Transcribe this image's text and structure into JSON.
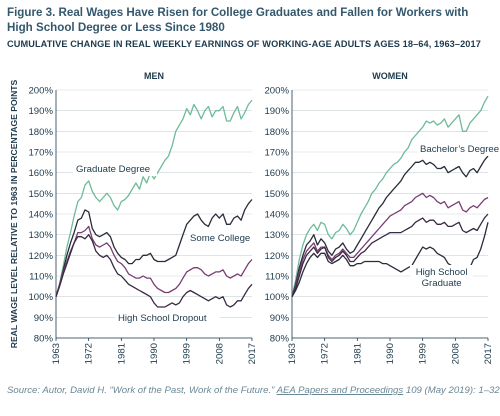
{
  "figure": {
    "title": "Figure 3. Real Wages Have Risen for College Graduates and Fallen for Workers with High School Degree or Less Since 1980",
    "subtitle": "CUMULATIVE CHANGE IN REAL WEEKLY EARNINGS OF WORKING-AGE ADULTS AGES 18–64, 1963–2017",
    "source_prefix": "Source: Autor, David H. “Work of the Past, Work of the Future.” ",
    "source_pub": "AEA Papers and Proceedings",
    "source_suffix": " 109 (May 2019): 1–32."
  },
  "colors": {
    "graduate": "#6dbb98",
    "college": "#2a2c39",
    "hs_grad": "#7a3d72",
    "dropout": "#3a2a44",
    "text": "#1d3a4c",
    "gridline": "#c9d3d8"
  },
  "chart_data": [
    {
      "type": "line",
      "title": "MEN",
      "ylabel": "REAL WAGE LEVEL RELATIVE TO 1963 IN PERCENTAGE POINTS",
      "xlabel": "",
      "xlim": [
        1963,
        2017
      ],
      "ylim": [
        80,
        200
      ],
      "x_ticks": [
        "1963",
        "1972",
        "1981",
        "1990",
        "1999",
        "2008",
        "2017"
      ],
      "y_ticks": [
        "80%",
        "90%",
        "100%",
        "110%",
        "120%",
        "130%",
        "140%",
        "150%",
        "160%",
        "170%",
        "180%",
        "190%",
        "200%"
      ],
      "x": [
        1963,
        1964,
        1965,
        1966,
        1967,
        1968,
        1969,
        1970,
        1971,
        1972,
        1973,
        1974,
        1975,
        1976,
        1977,
        1978,
        1979,
        1980,
        1981,
        1982,
        1983,
        1984,
        1985,
        1986,
        1987,
        1988,
        1989,
        1990,
        1991,
        1992,
        1993,
        1994,
        1995,
        1996,
        1997,
        1998,
        1999,
        2000,
        2001,
        2002,
        2003,
        2004,
        2005,
        2006,
        2007,
        2008,
        2009,
        2010,
        2011,
        2012,
        2013,
        2014,
        2015,
        2016,
        2017
      ],
      "series": [
        {
          "name": "Graduate Degree",
          "label": "Graduate Degree",
          "color_key": "graduate",
          "values": [
            100,
            106,
            115,
            124,
            131,
            139,
            146,
            148,
            154,
            156,
            151,
            148,
            146,
            148,
            150,
            148,
            144,
            142,
            146,
            147,
            149,
            152,
            155,
            152,
            158,
            155,
            160,
            157,
            160,
            163,
            166,
            168,
            173,
            180,
            183,
            186,
            191,
            188,
            193,
            190,
            186,
            190,
            192,
            187,
            190,
            190,
            192,
            185,
            185,
            189,
            192,
            186,
            189,
            193,
            195
          ]
        },
        {
          "name": "Some College",
          "label": "Some College",
          "color_key": "college",
          "values": [
            100,
            106,
            113,
            120,
            126,
            131,
            137,
            138,
            142,
            141,
            133,
            130,
            129,
            130,
            131,
            129,
            124,
            121,
            119,
            118,
            116,
            116,
            118,
            118,
            120,
            120,
            121,
            118,
            117,
            117,
            117,
            118,
            119,
            120,
            125,
            130,
            135,
            137,
            139,
            140,
            137,
            135,
            134,
            138,
            140,
            138,
            140,
            135,
            135,
            138,
            139,
            137,
            142,
            145,
            147
          ]
        },
        {
          "name": "High School Graduate",
          "label": "",
          "color_key": "hs_grad",
          "values": [
            100,
            106,
            112,
            117,
            122,
            126,
            131,
            131,
            132,
            134,
            128,
            125,
            124,
            125,
            126,
            124,
            120,
            117,
            116,
            114,
            111,
            110,
            109,
            109,
            110,
            109,
            109,
            106,
            104,
            103,
            102,
            102,
            103,
            104,
            106,
            109,
            112,
            113,
            114,
            114,
            113,
            111,
            110,
            111,
            112,
            112,
            113,
            110,
            109,
            110,
            111,
            110,
            113,
            116,
            118
          ]
        },
        {
          "name": "High School Dropout",
          "label": "High School Dropout",
          "color_key": "dropout",
          "values": [
            100,
            105,
            111,
            116,
            121,
            126,
            129,
            129,
            128,
            130,
            127,
            122,
            120,
            119,
            120,
            118,
            114,
            111,
            110,
            108,
            106,
            105,
            104,
            103,
            102,
            101,
            100,
            97,
            95,
            95,
            95,
            96,
            97,
            96,
            97,
            100,
            102,
            103,
            102,
            101,
            100,
            99,
            98,
            99,
            100,
            99,
            100,
            96,
            95,
            96,
            98,
            98,
            101,
            104,
            106
          ]
        }
      ]
    },
    {
      "type": "line",
      "title": "WOMEN",
      "ylabel": "",
      "xlabel": "",
      "xlim": [
        1963,
        2017
      ],
      "ylim": [
        80,
        200
      ],
      "x_ticks": [
        "1963",
        "1972",
        "1981",
        "1990",
        "1999",
        "2008",
        "2017"
      ],
      "y_ticks": [
        "80%",
        "90%",
        "100%",
        "110%",
        "120%",
        "130%",
        "140%",
        "150%",
        "160%",
        "170%",
        "180%",
        "190%",
        "200%"
      ],
      "x": [
        1963,
        1964,
        1965,
        1966,
        1967,
        1968,
        1969,
        1970,
        1971,
        1972,
        1973,
        1974,
        1975,
        1976,
        1977,
        1978,
        1979,
        1980,
        1981,
        1982,
        1983,
        1984,
        1985,
        1986,
        1987,
        1988,
        1989,
        1990,
        1991,
        1992,
        1993,
        1994,
        1995,
        1996,
        1997,
        1998,
        1999,
        2000,
        2001,
        2002,
        2003,
        2004,
        2005,
        2006,
        2007,
        2008,
        2009,
        2010,
        2011,
        2012,
        2013,
        2014,
        2015,
        2016,
        2017
      ],
      "series": [
        {
          "name": "Graduate Degree",
          "label": "",
          "color_key": "graduate",
          "values": [
            100,
            108,
            118,
            125,
            130,
            133,
            135,
            132,
            136,
            135,
            130,
            128,
            131,
            132,
            135,
            133,
            130,
            132,
            136,
            140,
            143,
            146,
            150,
            152,
            155,
            157,
            160,
            162,
            164,
            165,
            167,
            170,
            172,
            176,
            178,
            180,
            182,
            185,
            184,
            185,
            183,
            184,
            186,
            182,
            184,
            186,
            188,
            180,
            180,
            184,
            186,
            188,
            190,
            194,
            197
          ]
        },
        {
          "name": "Bachelor's Degree",
          "label": "Bachelor’s Degree",
          "color_key": "college",
          "values": [
            100,
            106,
            114,
            120,
            125,
            127,
            130,
            125,
            128,
            126,
            122,
            120,
            123,
            124,
            126,
            123,
            121,
            122,
            125,
            128,
            131,
            134,
            137,
            140,
            143,
            145,
            148,
            150,
            152,
            154,
            156,
            159,
            161,
            163,
            165,
            165,
            166,
            164,
            165,
            164,
            162,
            162,
            163,
            160,
            161,
            162,
            163,
            160,
            158,
            161,
            162,
            160,
            163,
            166,
            168
          ]
        },
        {
          "name": "Some College",
          "label": "",
          "color_key": "hs_grad",
          "values": [
            100,
            105,
            112,
            118,
            122,
            124,
            126,
            122,
            124,
            124,
            120,
            118,
            120,
            121,
            123,
            121,
            119,
            119,
            121,
            123,
            125,
            127,
            129,
            131,
            133,
            135,
            137,
            139,
            140,
            141,
            142,
            144,
            145,
            146,
            148,
            149,
            150,
            148,
            149,
            148,
            146,
            145,
            146,
            143,
            144,
            145,
            146,
            142,
            141,
            143,
            144,
            143,
            145,
            147,
            148
          ]
        },
        {
          "name": "High School Graduate",
          "label": "High School\nGraduate",
          "color_key": "dropout",
          "values": [
            100,
            104,
            110,
            116,
            120,
            122,
            124,
            121,
            123,
            124,
            119,
            117,
            119,
            120,
            122,
            120,
            117,
            117,
            119,
            121,
            122,
            124,
            126,
            127,
            128,
            129,
            130,
            131,
            131,
            131,
            131,
            132,
            133,
            134,
            136,
            137,
            138,
            136,
            137,
            137,
            135,
            135,
            136,
            134,
            134,
            135,
            136,
            132,
            131,
            132,
            133,
            132,
            135,
            138,
            140
          ]
        },
        {
          "name": "High School Dropout",
          "label": "",
          "color_key": "college",
          "values": [
            100,
            103,
            107,
            112,
            116,
            119,
            121,
            119,
            121,
            121,
            117,
            116,
            117,
            118,
            120,
            118,
            115,
            115,
            116,
            116,
            117,
            117,
            117,
            117,
            117,
            116,
            116,
            115,
            114,
            113,
            112,
            113,
            114,
            115,
            118,
            121,
            124,
            123,
            124,
            123,
            121,
            120,
            119,
            116,
            115,
            115,
            115,
            112,
            111,
            114,
            118,
            119,
            123,
            129,
            136
          ]
        }
      ]
    }
  ]
}
